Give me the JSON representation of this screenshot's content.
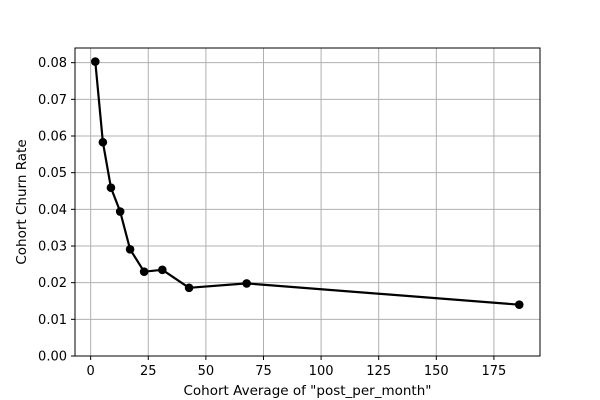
{
  "chart_data": {
    "type": "line",
    "title": "",
    "xlabel": "Cohort Average of  \"post_per_month\"",
    "ylabel": "Cohort Churn Rate",
    "xlim": [
      -6.8,
      195
    ],
    "ylim": [
      0,
      0.084
    ],
    "grid": true,
    "legend": "none",
    "x_ticks": [
      0,
      25,
      50,
      75,
      100,
      125,
      150,
      175
    ],
    "x_tick_labels": [
      "0",
      "25",
      "50",
      "75",
      "100",
      "125",
      "150",
      "175"
    ],
    "y_ticks": [
      0,
      0.01,
      0.02,
      0.03,
      0.04,
      0.05,
      0.06,
      0.07,
      0.08
    ],
    "y_tick_labels": [
      "0.00",
      "0.01",
      "0.02",
      "0.03",
      "0.04",
      "0.05",
      "0.06",
      "0.07",
      "0.08"
    ],
    "colors": {
      "line": "#000000",
      "grid": "#b0b0b0",
      "background": "#ffffff"
    },
    "series": [
      {
        "x": [
          2.0,
          5.3,
          8.8,
          12.8,
          17.1,
          23.2,
          31.1,
          42.7,
          67.7,
          186.0
        ],
        "values": [
          0.0803,
          0.0583,
          0.0459,
          0.0394,
          0.0291,
          0.023,
          0.0235,
          0.0186,
          0.0198,
          0.014
        ]
      }
    ]
  }
}
